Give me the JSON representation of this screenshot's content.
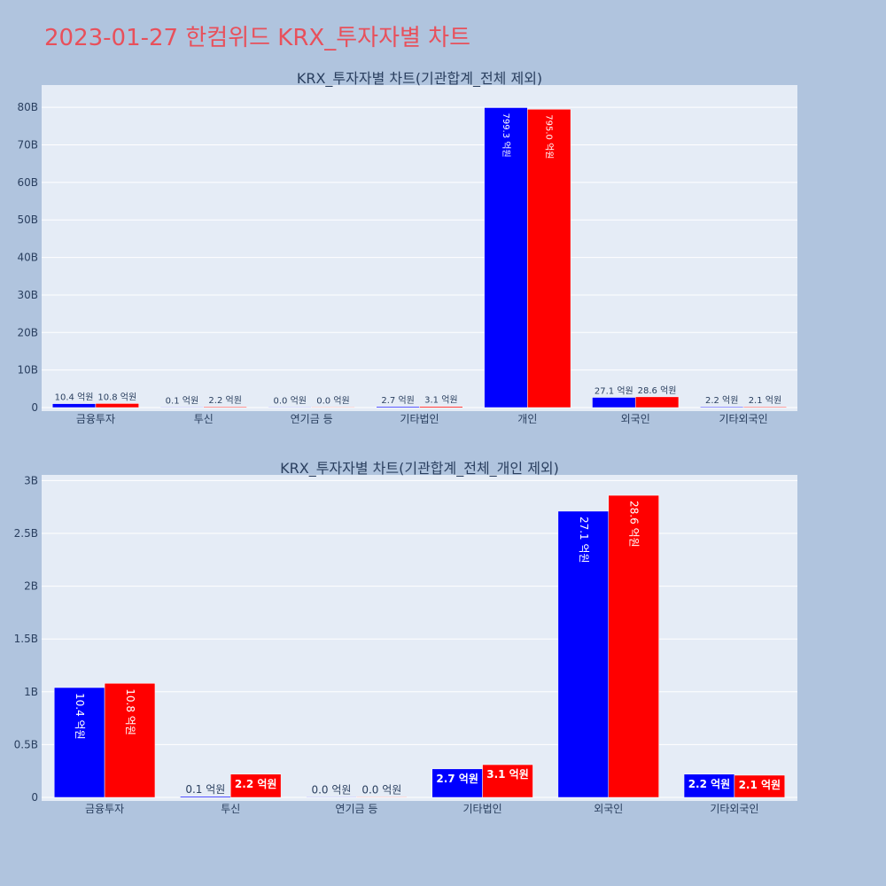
{
  "page": {
    "title": "2023-01-27 한컴위드 KRX_투자자별 차트"
  },
  "colors": {
    "background": "#b0c4de",
    "plot_background": "#e5ecf6",
    "series_a": "#0000ff",
    "series_b": "#ff0000",
    "title": "#e8505b",
    "axis_text": "#2a3f5f"
  },
  "chart_data": [
    {
      "type": "bar",
      "title": "KRX_투자자별 차트(기관합계_전체 제외)",
      "categories": [
        "금융투자",
        "투신",
        "연기금 등",
        "기타법인",
        "개인",
        "외국인",
        "기타외국인"
      ],
      "series": [
        {
          "color": "#0000ff",
          "values": [
            1040000000,
            10000000,
            0,
            270000000,
            79930000000,
            2710000000,
            220000000
          ],
          "labels": [
            "10.4 억원",
            "0.1 억원",
            "0.0 억원",
            "2.7 억원",
            "799.3 억원",
            "27.1 억원",
            "2.2 억원"
          ]
        },
        {
          "color": "#ff0000",
          "values": [
            1080000000,
            220000000,
            0,
            310000000,
            79500000000,
            2860000000,
            210000000
          ],
          "labels": [
            "10.8 억원",
            "2.2 억원",
            "0.0 억원",
            "3.1 억원",
            "795.0 억원",
            "28.6 억원",
            "2.1 억원"
          ]
        }
      ],
      "ylim": [
        0,
        85000000000
      ],
      "yticks": [
        0,
        10000000000,
        20000000000,
        30000000000,
        40000000000,
        50000000000,
        60000000000,
        70000000000,
        80000000000
      ],
      "ytick_labels": [
        "0",
        "10B",
        "20B",
        "30B",
        "40B",
        "50B",
        "60B",
        "70B",
        "80B"
      ],
      "grid": true
    },
    {
      "type": "bar",
      "title": "KRX_투자자별 차트(기관합계_전체_개인 제외)",
      "categories": [
        "금융투자",
        "투신",
        "연기금 등",
        "기타법인",
        "외국인",
        "기타외국인"
      ],
      "series": [
        {
          "color": "#0000ff",
          "values": [
            1040000000,
            10000000,
            0,
            270000000,
            2710000000,
            220000000
          ],
          "labels": [
            "10.4 억원",
            "0.1 억원",
            "0.0 억원",
            "2.7 억원",
            "27.1 억원",
            "2.2 억원"
          ]
        },
        {
          "color": "#ff0000",
          "values": [
            1080000000,
            220000000,
            0,
            310000000,
            2860000000,
            210000000
          ],
          "labels": [
            "10.8 억원",
            "2.2 억원",
            "0.0 억원",
            "3.1 억원",
            "28.6 억원",
            "2.1 억원"
          ]
        }
      ],
      "ylim": [
        0,
        3020000000
      ],
      "yticks": [
        0,
        500000000,
        1000000000,
        1500000000,
        2000000000,
        2500000000,
        3000000000
      ],
      "ytick_labels": [
        "0",
        "0.5B",
        "1B",
        "1.5B",
        "2B",
        "2.5B",
        "3B"
      ],
      "grid": true
    }
  ]
}
